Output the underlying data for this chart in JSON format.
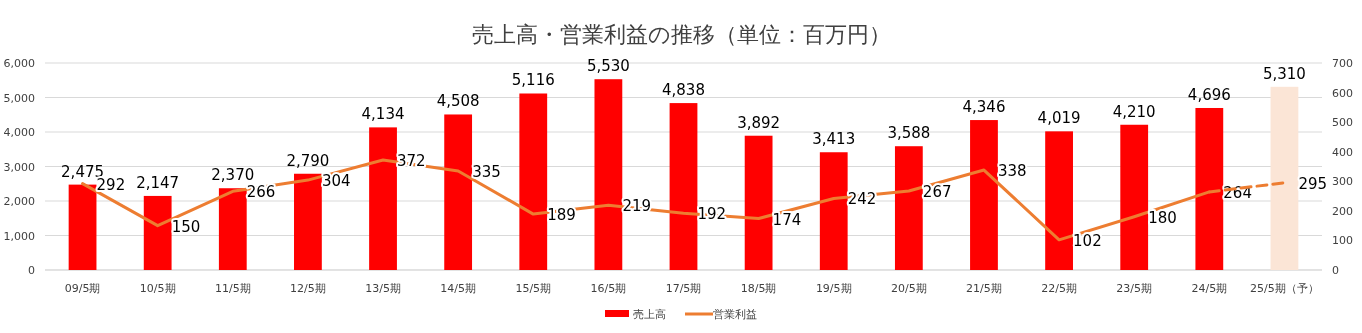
{
  "chart_data": {
    "type": "bar",
    "title": "売上高・営業利益の推移（単位：百万円）",
    "categories": [
      "09/5期",
      "10/5期",
      "11/5期",
      "12/5期",
      "13/5期",
      "14/5期",
      "15/5期",
      "16/5期",
      "17/5期",
      "18/5期",
      "19/5期",
      "20/5期",
      "21/5期",
      "22/5期",
      "23/5期",
      "24/5期",
      "25/5期（予）"
    ],
    "series": [
      {
        "name": "売上高",
        "color": "#ff0000",
        "colors": [
          "#ff0000",
          "#ff0000",
          "#ff0000",
          "#ff0000",
          "#ff0000",
          "#ff0000",
          "#ff0000",
          "#ff0000",
          "#ff0000",
          "#ff0000",
          "#ff0000",
          "#ff0000",
          "#ff0000",
          "#ff0000",
          "#ff0000",
          "#ff0000",
          "#fbe5d6"
        ],
        "values": [
          2475,
          2147,
          2370,
          2790,
          4134,
          4508,
          5116,
          5530,
          4838,
          3892,
          3413,
          3588,
          4346,
          4019,
          4210,
          4696,
          5310
        ],
        "value_labels": [
          "2,475",
          "2,147",
          "2,370",
          "2,790",
          "4,134",
          "4,508",
          "5,116",
          "5,530",
          "4,838",
          "3,892",
          "3,413",
          "3,588",
          "4,346",
          "4,019",
          "4,210",
          "4,696",
          "5,310"
        ]
      },
      {
        "name": "営業利益",
        "type": "line",
        "axis": "y2",
        "color": "#ed7d31",
        "line_style": "solid",
        "values": [
          292,
          150,
          266,
          304,
          372,
          335,
          189,
          219,
          192,
          174,
          242,
          267,
          338,
          102,
          180,
          264,
          null
        ],
        "value_labels": [
          "292",
          "150",
          "266",
          "304",
          "372",
          "335",
          "189",
          "219",
          "192",
          "174",
          "242",
          "267",
          "338",
          "102",
          "180",
          "264",
          null
        ]
      },
      {
        "type": "line",
        "axis": "y2",
        "color": "#ed7d31",
        "line_style": "dashed",
        "values": [
          null,
          null,
          null,
          null,
          null,
          null,
          null,
          null,
          null,
          null,
          null,
          null,
          null,
          null,
          null,
          264,
          295
        ],
        "value_labels": [
          null,
          null,
          null,
          null,
          null,
          null,
          null,
          null,
          null,
          null,
          null,
          null,
          null,
          null,
          null,
          null,
          "295"
        ]
      }
    ],
    "ylim": [
      0,
      6000
    ],
    "yticks": [
      0,
      {
        "value": 1000,
        "label": "1,000"
      },
      {
        "value": 2000,
        "label": "2,000"
      },
      {
        "value": 3000,
        "label": "3,000"
      },
      {
        "value": 4000,
        "label": "4,000"
      },
      {
        "value": 5000,
        "label": "5,000"
      },
      {
        "value": 6000,
        "label": "6,000"
      }
    ],
    "y2lim": [
      0,
      700
    ],
    "y2ticks": [
      0,
      100,
      200,
      300,
      400,
      500,
      600,
      700
    ],
    "grid": "y",
    "legend": "bottom"
  }
}
